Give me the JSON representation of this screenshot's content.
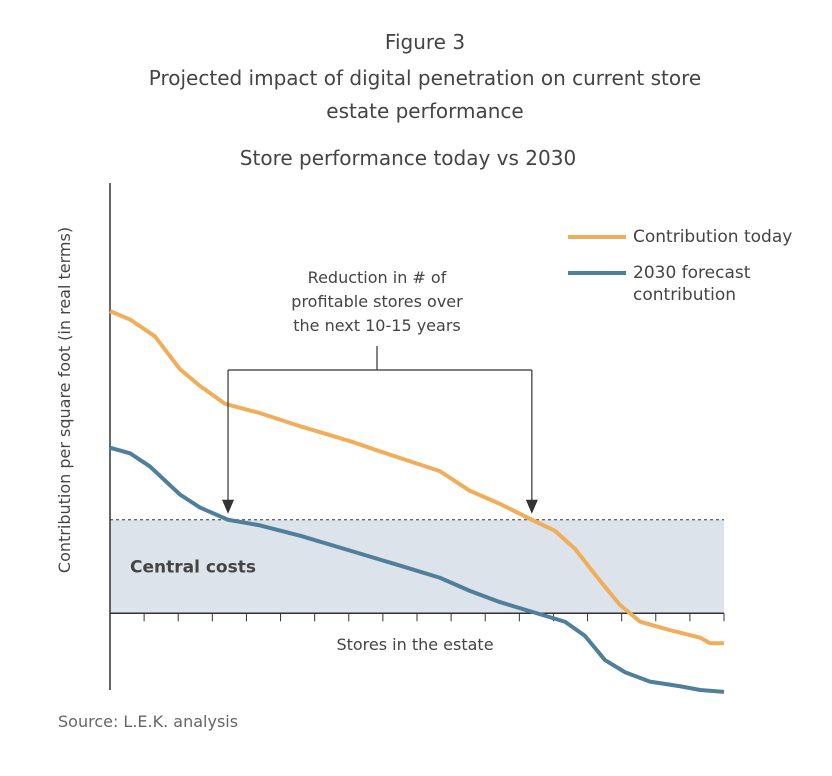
{
  "chart_data": {
    "type": "line",
    "figure_label": "Figure 3",
    "title": "Projected impact of digital penetration on current store estate performance",
    "subtitle": "Store performance today vs 2030",
    "y_label": "Contribution per square foot (in real terms)",
    "x_label": "Stores in the estate",
    "source": "Source: L.E.K. analysis",
    "annotation": "Reduction in # of profitable stores over the next 10-15 years",
    "central_costs": {
      "label": "Central costs",
      "value": 10,
      "color": "#dde3ea"
    },
    "xlim": [
      0,
      18
    ],
    "ylim": [
      -9,
      46
    ],
    "xticks": [
      0,
      1,
      2,
      3,
      4,
      5,
      6,
      7,
      8,
      9,
      10,
      11,
      12,
      13,
      14,
      15,
      16,
      17,
      18
    ],
    "legend": "top-right",
    "series": [
      {
        "name": "Contribution today",
        "color": "#f0ad5a",
        "x": [
          0,
          0.59,
          1.32,
          2.05,
          2.64,
          3.37,
          4.4,
          5.57,
          7.04,
          8.5,
          9.67,
          10.55,
          11.43,
          12.31,
          13.05,
          13.63,
          14.36,
          14.95,
          15.54,
          16.42,
          17.3,
          17.59,
          18
        ],
        "values": [
          32.3,
          31.4,
          29.6,
          26.1,
          24.3,
          22.4,
          21.4,
          20.0,
          18.4,
          16.6,
          15.2,
          13.1,
          11.7,
          10.1,
          8.8,
          6.9,
          3.5,
          0.9,
          -0.9,
          -1.8,
          -2.6,
          -3.2,
          -3.2
        ]
      },
      {
        "name": "2030 forecast contribution",
        "color": "#4f7f9a",
        "x": [
          0,
          0.59,
          1.17,
          2.05,
          2.64,
          3.46,
          4.4,
          5.57,
          7.04,
          8.5,
          9.67,
          10.55,
          11.43,
          12.61,
          13.34,
          13.92,
          14.51,
          15.1,
          15.83,
          16.71,
          17.3,
          18
        ],
        "values": [
          17.7,
          17.1,
          15.7,
          12.7,
          11.3,
          10.0,
          9.4,
          8.3,
          6.7,
          5.1,
          3.8,
          2.4,
          1.2,
          -0.1,
          -0.9,
          -2.4,
          -5.0,
          -6.3,
          -7.3,
          -7.8,
          -8.2,
          -8.4
        ]
      }
    ]
  }
}
